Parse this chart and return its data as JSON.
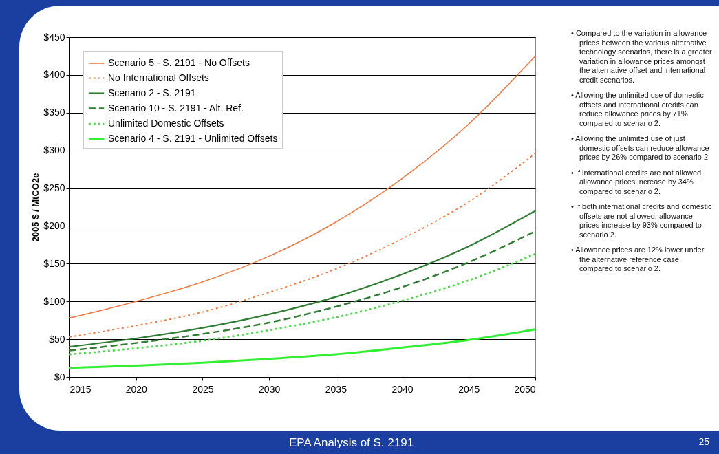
{
  "chart_data": {
    "type": "line",
    "ylabel": "2005 $ / MtCO2e",
    "x": [
      2015,
      2020,
      2025,
      2030,
      2035,
      2040,
      2045,
      2050
    ],
    "series": [
      {
        "name": "Scenario 5 - S. 2191 - No Offsets",
        "color": "#f07840",
        "line_style": "solid",
        "values": [
          78,
          100,
          126,
          160,
          205,
          263,
          335,
          425
        ]
      },
      {
        "name": "No International Offsets",
        "color": "#f07840",
        "line_style": "dotted",
        "values": [
          53,
          68,
          86,
          112,
          143,
          183,
          232,
          296
        ]
      },
      {
        "name": "Scenario 2 - S. 2191",
        "color": "#2e7d32",
        "line_style": "solid",
        "values": [
          40,
          51,
          65,
          83,
          106,
          136,
          173,
          220
        ]
      },
      {
        "name": "Scenario 10 - S. 2191 - Alt. Ref.",
        "color": "#2e7d32",
        "line_style": "dashed",
        "values": [
          35,
          45,
          57,
          72,
          93,
          119,
          152,
          193
        ]
      },
      {
        "name": "Unlimited Domestic Offsets",
        "color": "#44dd44",
        "line_style": "dotted",
        "values": [
          30,
          38,
          48,
          62,
          79,
          101,
          128,
          163
        ]
      },
      {
        "name": "Scenario 4 - S. 2191 - Unlimited Offsets",
        "color": "#33ee33",
        "line_style": "solid",
        "values": [
          12,
          15,
          19,
          24,
          30,
          39,
          49,
          63
        ]
      }
    ],
    "xlim": [
      2015,
      2050
    ],
    "xticks": [
      2015,
      2020,
      2025,
      2030,
      2035,
      2040,
      2045,
      2050
    ],
    "ylim": [
      0,
      450
    ],
    "yticks": [
      {
        "value": 0,
        "label": "$0"
      },
      {
        "value": 50,
        "label": "$50"
      },
      {
        "value": 100,
        "label": "$100"
      },
      {
        "value": 150,
        "label": "$150"
      },
      {
        "value": 200,
        "label": "$200"
      },
      {
        "value": 250,
        "label": "$250"
      },
      {
        "value": 300,
        "label": "$300"
      },
      {
        "value": 350,
        "label": "$350"
      },
      {
        "value": 400,
        "label": "$400"
      },
      {
        "value": 450,
        "label": "$450"
      }
    ],
    "grid": "y",
    "legend": "top left",
    "annotations": [
      "• Compared to the variation in allowance prices between the various alternative technology scenarios, there is a greater variation in allowance prices amongst the alternative offset and international credit scenarios.",
      "• Allowing the unlimited use of domestic offsets and international credits can reduce allowance prices by 71% compared to scenario 2.",
      "• Allowing the unlimited use of just domestic offsets can reduce allowance prices by 26% compared to scenario 2.",
      "• If international credits are not allowed, allowance prices increase by 34% compared to scenario 2.",
      "• If both international credits and domestic offsets are not allowed, allowance prices increase by 93% compared to scenario 2.",
      "• Allowance prices are 12% lower under the alternative reference case compared to scenario 2.",
      "EPA Analysis of S. 2191",
      "25"
    ]
  }
}
